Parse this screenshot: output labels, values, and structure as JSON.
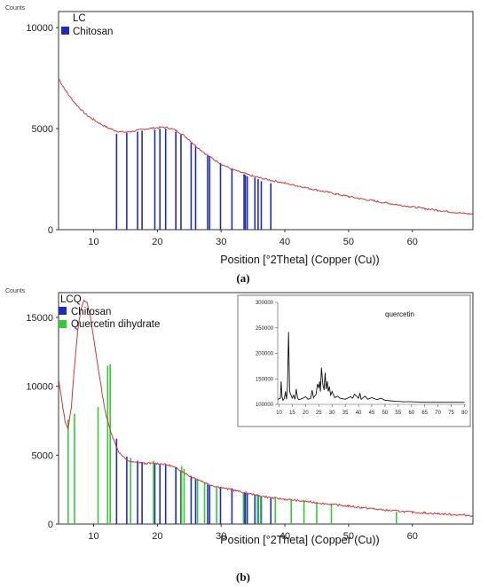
{
  "chart_data": [
    {
      "type": "line",
      "counts_label": "Counts",
      "xlabel": "Position [°2Theta] (Copper (Cu))",
      "caption": "(a)",
      "xlim": [
        4.5,
        69.5
      ],
      "ylim": [
        0,
        10800
      ],
      "xticks": [
        10,
        20,
        30,
        40,
        50,
        60
      ],
      "yticks": [
        0,
        5000,
        10000
      ],
      "colors": {
        "pattern": "#d0383b",
        "Chitosan": "#1f2bbf"
      },
      "legend": [
        {
          "name": "LC",
          "color": ""
        },
        {
          "name": "Chitosan",
          "color": "#1f2bbf"
        }
      ],
      "pattern": {
        "x": [
          4.5,
          5,
          6,
          7,
          8,
          9,
          10,
          11,
          12,
          13,
          14,
          15,
          16,
          17,
          18,
          19,
          20,
          21,
          22,
          23,
          24,
          25,
          26,
          27,
          28,
          29,
          30,
          31,
          32,
          33,
          34,
          35,
          36,
          37,
          38,
          39,
          40,
          42,
          44,
          46,
          48,
          50,
          52,
          54,
          56,
          58,
          60,
          62,
          64,
          66,
          68,
          69.5
        ],
        "y": [
          7500,
          7200,
          6700,
          6300,
          5950,
          5650,
          5450,
          5250,
          5080,
          4950,
          4850,
          4830,
          4860,
          4920,
          4980,
          5020,
          5050,
          5070,
          5020,
          4900,
          4700,
          4450,
          4150,
          3900,
          3650,
          3450,
          3250,
          3100,
          2950,
          2850,
          2750,
          2650,
          2570,
          2500,
          2430,
          2370,
          2300,
          2170,
          2030,
          1900,
          1770,
          1640,
          1530,
          1420,
          1320,
          1220,
          1130,
          1040,
          960,
          880,
          810,
          770
        ]
      },
      "series": [
        {
          "name": "Chitosan",
          "x": [
            13.6,
            15.2,
            16.9,
            17.6,
            19.6,
            20.4,
            21.3,
            22.9,
            23.7,
            25.3,
            26.0,
            27.9,
            28.2,
            29.9,
            31.7,
            33.6,
            33.8,
            34.1,
            35.3,
            35.8,
            36.3,
            37.8
          ],
          "values": [
            4750,
            4800,
            4850,
            4900,
            4950,
            5000,
            5000,
            4850,
            4700,
            4300,
            4150,
            3700,
            3650,
            3300,
            3000,
            2750,
            2700,
            2650,
            2580,
            2500,
            2400,
            2300
          ]
        }
      ]
    },
    {
      "type": "line",
      "counts_label": "Counts",
      "xlabel": "Position [°2Theta] (Copper (Cu))",
      "caption": "(b)",
      "xlim": [
        4.5,
        69.5
      ],
      "ylim": [
        0,
        16800
      ],
      "xticks": [
        10,
        20,
        30,
        40,
        50,
        60
      ],
      "yticks": [
        0,
        5000,
        10000,
        15000
      ],
      "colors": {
        "pattern": "#d0383b",
        "Chitosan": "#1f2bbf",
        "Quercetin dihydrate": "#33cc33"
      },
      "legend": [
        {
          "name": "LCQ",
          "color": ""
        },
        {
          "name": "Chitosan",
          "color": "#1f2bbf"
        },
        {
          "name": "Quercetin dihydrate",
          "color": "#33cc33"
        }
      ],
      "pattern": {
        "x": [
          4.5,
          5,
          5.5,
          6,
          6.5,
          7,
          7.5,
          8,
          8.5,
          9,
          9.5,
          10,
          10.5,
          11,
          11.5,
          12,
          12.5,
          13,
          13.5,
          14,
          15,
          16,
          17,
          18,
          19,
          20,
          21,
          22,
          23,
          24,
          25,
          26,
          27,
          28,
          29,
          30,
          31,
          32,
          34,
          36,
          38,
          40,
          42,
          44,
          46,
          48,
          50,
          52,
          54,
          56,
          58,
          60,
          62,
          64,
          66,
          68,
          69.5
        ],
        "y": [
          10500,
          9000,
          7500,
          6900,
          8500,
          11500,
          14000,
          15600,
          16300,
          16000,
          15000,
          13500,
          12000,
          10500,
          9000,
          7800,
          7000,
          6300,
          5700,
          5200,
          4700,
          4500,
          4450,
          4400,
          4400,
          4400,
          4350,
          4250,
          4050,
          3800,
          3500,
          3300,
          3100,
          2900,
          2750,
          2650,
          2550,
          2450,
          2250,
          2050,
          1900,
          1800,
          1700,
          1600,
          1500,
          1400,
          1300,
          1200,
          1100,
          1000,
          930,
          860,
          800,
          750,
          700,
          650,
          620
        ]
      },
      "series": [
        {
          "name": "Chitosan",
          "x": [
            13.6,
            15.2,
            16.9,
            17.6,
            19.6,
            20.4,
            21.3,
            22.9,
            23.7,
            25.3,
            26.0,
            27.9,
            28.2,
            29.9,
            31.7,
            33.6,
            33.8,
            34.1,
            35.3,
            35.8,
            36.3,
            37.8
          ],
          "values": [
            6200,
            4900,
            4600,
            4500,
            4400,
            4350,
            4300,
            4100,
            3900,
            3500,
            3300,
            2900,
            2850,
            2700,
            2600,
            2300,
            2250,
            2200,
            2150,
            2100,
            2000,
            1900
          ]
        },
        {
          "name": "Quercetin dihydrate",
          "x": [
            6.0,
            7.0,
            10.7,
            12.2,
            12.6,
            15.8,
            19.4,
            23.8,
            24.2,
            26.3,
            27.4,
            29.3,
            33.5,
            35.7,
            36.2,
            38.5,
            41.0,
            43.0,
            45.0,
            47.3,
            57.5
          ],
          "values": [
            7600,
            8000,
            8500,
            11500,
            11600,
            4800,
            4600,
            4200,
            4000,
            3300,
            3000,
            2700,
            2250,
            2100,
            2050,
            1900,
            1800,
            1700,
            1600,
            1500,
            900
          ]
        }
      ],
      "inset": {
        "title": "quercetin",
        "xlim": [
          9.5,
          80.5
        ],
        "ylim": [
          100000,
          300000
        ],
        "xticks": [
          10,
          15,
          20,
          25,
          30,
          35,
          40,
          45,
          50,
          55,
          60,
          65,
          70,
          75,
          80
        ],
        "yticks": [
          100000,
          150000,
          200000,
          250000,
          300000
        ],
        "line": {
          "x": [
            9.5,
            10.5,
            10.8,
            11.1,
            11.5,
            12.0,
            12.4,
            12.8,
            13.2,
            13.6,
            14.0,
            15.0,
            15.5,
            16.0,
            16.5,
            17.0,
            17.5,
            18.0,
            19.0,
            20.0,
            21.0,
            22.0,
            22.5,
            23.0,
            24.0,
            24.5,
            25.0,
            25.3,
            25.6,
            26.0,
            26.5,
            27.0,
            27.4,
            27.8,
            28.2,
            28.6,
            29.0,
            29.5,
            30.0,
            31.0,
            32.0,
            33.0,
            35.0,
            37.0,
            37.8,
            38.5,
            40.0,
            40.5,
            41.0,
            42.5,
            43.5,
            45.0,
            47.0,
            48.5,
            50.0,
            52.0,
            54.0,
            57.0,
            60.0,
            65.0,
            70.0,
            75.0,
            80.0
          ],
          "y": [
            110000,
            112000,
            145000,
            115000,
            108000,
            112000,
            125000,
            110000,
            135000,
            242000,
            125000,
            112000,
            118000,
            110000,
            130000,
            112000,
            109000,
            110000,
            112000,
            115000,
            110000,
            112000,
            128000,
            113000,
            120000,
            140000,
            132000,
            145000,
            125000,
            172000,
            140000,
            128000,
            162000,
            130000,
            145000,
            125000,
            135000,
            118000,
            125000,
            113000,
            116000,
            112000,
            110000,
            115000,
            112000,
            120000,
            112000,
            122000,
            110000,
            116000,
            110000,
            113000,
            109000,
            112000,
            108000,
            107000,
            106000,
            105000,
            105000,
            104000,
            104000,
            104000,
            104000
          ]
        }
      }
    }
  ]
}
